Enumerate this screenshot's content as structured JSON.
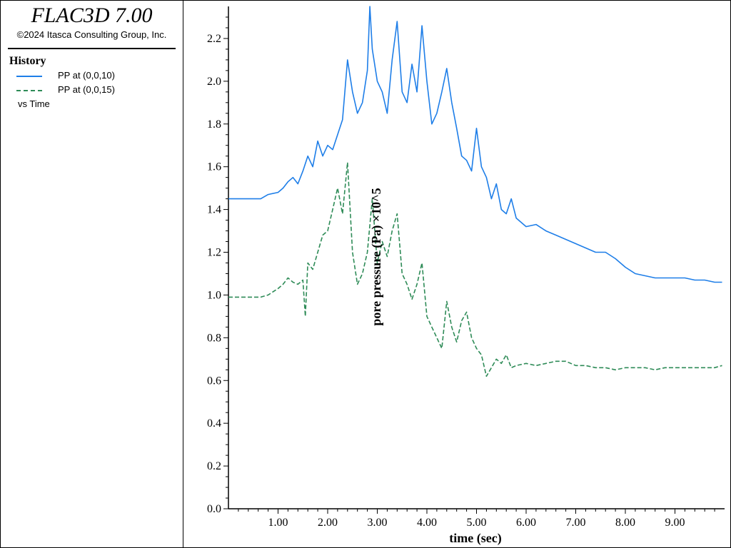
{
  "app": {
    "title": "FLAC3D 7.00",
    "copyright": "©2024 Itasca Consulting Group, Inc."
  },
  "legend": {
    "heading": "History",
    "entries": [
      {
        "label": "PP at (0,0,10)",
        "color": "#1e7ee8",
        "style": "solid"
      },
      {
        "label": "PP at (0,0,15)",
        "color": "#2e8b57",
        "style": "dashed"
      }
    ],
    "vs_label": "vs Time"
  },
  "chart_data": {
    "type": "line",
    "xlabel": "time (sec)",
    "ylabel": "pore pressure (Pa) ×10^5",
    "xlim": [
      0.0,
      10.0
    ],
    "ylim": [
      0.0,
      2.35
    ],
    "x_ticks": [
      "1.00",
      "2.00",
      "3.00",
      "4.00",
      "5.00",
      "6.00",
      "7.00",
      "8.00",
      "9.00"
    ],
    "y_ticks": [
      "0.0",
      "0.2",
      "0.4",
      "0.6",
      "0.8",
      "1.0",
      "1.2",
      "1.4",
      "1.6",
      "1.8",
      "2.0",
      "2.2"
    ],
    "grid": false,
    "series": [
      {
        "name": "PP at (0,0,10)",
        "color": "#1e7ee8",
        "style": "solid",
        "x": [
          0.0,
          0.5,
          0.65,
          0.8,
          1.0,
          1.1,
          1.2,
          1.3,
          1.4,
          1.5,
          1.6,
          1.7,
          1.8,
          1.9,
          2.0,
          2.1,
          2.2,
          2.3,
          2.4,
          2.5,
          2.6,
          2.7,
          2.8,
          2.85,
          2.9,
          3.0,
          3.1,
          3.2,
          3.3,
          3.4,
          3.5,
          3.6,
          3.7,
          3.8,
          3.9,
          4.0,
          4.1,
          4.2,
          4.3,
          4.4,
          4.5,
          4.6,
          4.7,
          4.8,
          4.9,
          5.0,
          5.1,
          5.2,
          5.3,
          5.4,
          5.5,
          5.6,
          5.7,
          5.8,
          6.0,
          6.2,
          6.4,
          6.6,
          6.8,
          7.0,
          7.2,
          7.4,
          7.6,
          7.8,
          8.0,
          8.2,
          8.4,
          8.6,
          8.8,
          9.0,
          9.2,
          9.4,
          9.6,
          9.8,
          9.95
        ],
        "y": [
          1.45,
          1.45,
          1.45,
          1.47,
          1.48,
          1.5,
          1.53,
          1.55,
          1.52,
          1.58,
          1.65,
          1.6,
          1.72,
          1.65,
          1.7,
          1.68,
          1.75,
          1.82,
          2.1,
          1.95,
          1.85,
          1.9,
          2.05,
          2.35,
          2.15,
          2.0,
          1.95,
          1.85,
          2.1,
          2.28,
          1.95,
          1.9,
          2.08,
          1.95,
          2.26,
          2.0,
          1.8,
          1.85,
          1.95,
          2.06,
          1.9,
          1.78,
          1.65,
          1.63,
          1.58,
          1.78,
          1.6,
          1.55,
          1.45,
          1.52,
          1.4,
          1.38,
          1.45,
          1.36,
          1.32,
          1.33,
          1.3,
          1.28,
          1.26,
          1.24,
          1.22,
          1.2,
          1.2,
          1.17,
          1.13,
          1.1,
          1.09,
          1.08,
          1.08,
          1.08,
          1.08,
          1.07,
          1.07,
          1.06,
          1.06
        ]
      },
      {
        "name": "PP at (0,0,15)",
        "color": "#2e8b57",
        "style": "dashed",
        "x": [
          0.0,
          0.5,
          0.65,
          0.8,
          1.0,
          1.1,
          1.2,
          1.3,
          1.4,
          1.5,
          1.55,
          1.6,
          1.7,
          1.8,
          1.9,
          2.0,
          2.1,
          2.2,
          2.3,
          2.4,
          2.5,
          2.6,
          2.7,
          2.8,
          2.9,
          3.0,
          3.1,
          3.2,
          3.3,
          3.4,
          3.5,
          3.6,
          3.7,
          3.8,
          3.9,
          4.0,
          4.1,
          4.2,
          4.3,
          4.4,
          4.5,
          4.6,
          4.7,
          4.8,
          4.9,
          5.0,
          5.1,
          5.2,
          5.3,
          5.4,
          5.5,
          5.6,
          5.7,
          5.8,
          6.0,
          6.2,
          6.4,
          6.6,
          6.8,
          7.0,
          7.2,
          7.4,
          7.6,
          7.8,
          8.0,
          8.2,
          8.4,
          8.6,
          8.8,
          9.0,
          9.2,
          9.4,
          9.6,
          9.8,
          9.95
        ],
        "y": [
          0.99,
          0.99,
          0.99,
          1.0,
          1.03,
          1.05,
          1.08,
          1.06,
          1.05,
          1.07,
          0.9,
          1.15,
          1.12,
          1.2,
          1.28,
          1.3,
          1.4,
          1.5,
          1.38,
          1.62,
          1.2,
          1.05,
          1.1,
          1.2,
          1.45,
          1.15,
          1.25,
          1.18,
          1.3,
          1.38,
          1.1,
          1.05,
          0.98,
          1.05,
          1.15,
          0.9,
          0.85,
          0.8,
          0.75,
          0.97,
          0.85,
          0.78,
          0.88,
          0.92,
          0.8,
          0.75,
          0.72,
          0.62,
          0.66,
          0.7,
          0.68,
          0.72,
          0.66,
          0.67,
          0.68,
          0.67,
          0.68,
          0.69,
          0.69,
          0.67,
          0.67,
          0.66,
          0.66,
          0.65,
          0.66,
          0.66,
          0.66,
          0.65,
          0.66,
          0.66,
          0.66,
          0.66,
          0.66,
          0.66,
          0.67
        ]
      }
    ]
  }
}
